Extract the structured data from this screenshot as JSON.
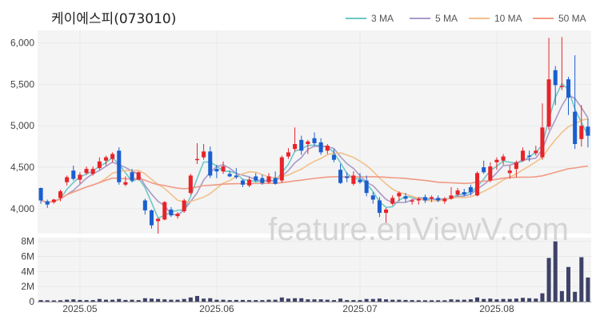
{
  "title": "케이에스피(073010)",
  "watermark": "feature.enViewV.com",
  "legend": [
    {
      "label": "3 MA",
      "color": "#6cc8c8"
    },
    {
      "label": "5 MA",
      "color": "#a99ac8"
    },
    {
      "label": "10 MA",
      "color": "#f2c08a"
    },
    {
      "label": "50 MA",
      "color": "#f09a84"
    }
  ],
  "colors": {
    "up": "#e8232a",
    "down": "#1b5fcf",
    "volume": "#3e4268",
    "grid": "#e9e9e9",
    "panel": "#f4f4f4"
  },
  "chart_data": {
    "type": "candlestick",
    "x_ticks": [
      "2025.05",
      "2025.06",
      "2025.07",
      "2025.08"
    ],
    "x_tick_index": [
      6,
      27,
      49,
      70
    ],
    "price_axis": {
      "ticks": [
        "4,000",
        "4,500",
        "5,000",
        "5,500",
        "6,000"
      ],
      "tick_values": [
        4000,
        4500,
        5000,
        5500,
        6000
      ],
      "range": [
        3700,
        6150
      ]
    },
    "volume_axis": {
      "ticks": [
        "0",
        "2M",
        "4M",
        "6M",
        "8M"
      ],
      "tick_values": [
        0,
        2,
        4,
        6,
        8
      ],
      "unit": "M",
      "range": [
        0,
        8.5
      ]
    },
    "candles": [
      [
        4250,
        4255,
        4060,
        4100,
        0.2
      ],
      [
        4090,
        4110,
        4010,
        4050,
        0.18
      ],
      [
        4080,
        4120,
        4060,
        4110,
        0.16
      ],
      [
        4130,
        4230,
        4090,
        4210,
        0.18
      ],
      [
        4320,
        4400,
        4280,
        4380,
        0.25
      ],
      [
        4460,
        4520,
        4340,
        4360,
        0.3
      ],
      [
        4350,
        4440,
        4300,
        4410,
        0.22
      ],
      [
        4430,
        4510,
        4410,
        4480,
        0.2
      ],
      [
        4420,
        4510,
        4400,
        4480,
        0.2
      ],
      [
        4490,
        4620,
        4470,
        4570,
        0.35
      ],
      [
        4580,
        4640,
        4520,
        4620,
        0.25
      ],
      [
        4600,
        4680,
        4560,
        4660,
        0.25
      ],
      [
        4700,
        4740,
        4290,
        4320,
        0.35
      ],
      [
        4290,
        4390,
        4270,
        4320,
        0.22
      ],
      [
        4440,
        4480,
        4320,
        4340,
        0.25
      ],
      [
        4350,
        4450,
        4340,
        4440,
        0.2
      ],
      [
        4100,
        4120,
        3930,
        3980,
        0.45
      ],
      [
        3980,
        3990,
        3760,
        3800,
        0.4
      ],
      [
        3850,
        3880,
        3700,
        3880,
        0.35
      ],
      [
        3870,
        4090,
        3860,
        4080,
        0.3
      ],
      [
        3990,
        4020,
        3900,
        3920,
        0.25
      ],
      [
        3910,
        3960,
        3880,
        3940,
        0.25
      ],
      [
        3970,
        4120,
        3950,
        4100,
        0.35
      ],
      [
        4190,
        4420,
        4170,
        4400,
        0.55
      ],
      [
        4590,
        4790,
        4540,
        4600,
        0.75
      ],
      [
        4620,
        4780,
        4590,
        4690,
        0.4
      ],
      [
        4690,
        4750,
        4370,
        4400,
        0.45
      ],
      [
        4480,
        4530,
        4370,
        4450,
        0.25
      ],
      [
        4450,
        4570,
        4420,
        4510,
        0.25
      ],
      [
        4420,
        4460,
        4380,
        4390,
        0.2
      ],
      [
        4400,
        4490,
        4360,
        4380,
        0.22
      ],
      [
        4340,
        4360,
        4260,
        4290,
        0.22
      ],
      [
        4280,
        4380,
        4260,
        4350,
        0.2
      ],
      [
        4390,
        4430,
        4320,
        4340,
        0.2
      ],
      [
        4370,
        4410,
        4290,
        4310,
        0.2
      ],
      [
        4320,
        4430,
        4300,
        4390,
        0.25
      ],
      [
        4370,
        4450,
        4290,
        4300,
        0.25
      ],
      [
        4340,
        4640,
        4310,
        4620,
        0.55
      ],
      [
        4630,
        4730,
        4600,
        4680,
        0.4
      ],
      [
        4720,
        4980,
        4690,
        4780,
        0.45
      ],
      [
        4830,
        4880,
        4650,
        4700,
        0.45
      ],
      [
        4780,
        4830,
        4660,
        4810,
        0.3
      ],
      [
        4850,
        4920,
        4760,
        4790,
        0.3
      ],
      [
        4800,
        4850,
        4650,
        4680,
        0.3
      ],
      [
        4700,
        4780,
        4660,
        4760,
        0.25
      ],
      [
        4650,
        4720,
        4560,
        4590,
        0.2
      ],
      [
        4470,
        4540,
        4300,
        4310,
        0.4
      ],
      [
        4390,
        4440,
        4320,
        4370,
        0.2
      ],
      [
        4300,
        4450,
        4280,
        4400,
        0.2
      ],
      [
        4350,
        4430,
        4300,
        4320,
        0.2
      ],
      [
        4340,
        4400,
        4150,
        4190,
        0.35
      ],
      [
        4160,
        4200,
        4060,
        4110,
        0.35
      ],
      [
        4100,
        4140,
        3900,
        3950,
        0.4
      ],
      [
        3950,
        4010,
        3830,
        3990,
        0.3
      ],
      [
        4060,
        4160,
        4040,
        4130,
        0.25
      ],
      [
        4150,
        4210,
        4090,
        4190,
        0.25
      ],
      [
        4150,
        4190,
        4080,
        4120,
        0.22
      ],
      [
        4090,
        4120,
        4050,
        4100,
        0.2
      ],
      [
        4100,
        4140,
        4050,
        4120,
        0.18
      ],
      [
        4140,
        4170,
        4070,
        4100,
        0.18
      ],
      [
        4120,
        4160,
        4080,
        4140,
        0.18
      ],
      [
        4130,
        4160,
        4080,
        4100,
        0.18
      ],
      [
        4090,
        4140,
        4060,
        4120,
        0.18
      ],
      [
        4120,
        4260,
        4110,
        4160,
        0.3
      ],
      [
        4170,
        4250,
        4150,
        4220,
        0.25
      ],
      [
        4200,
        4240,
        4150,
        4170,
        0.25
      ],
      [
        4260,
        4290,
        4160,
        4200,
        0.3
      ],
      [
        4160,
        4450,
        4150,
        4430,
        0.55
      ],
      [
        4500,
        4580,
        4420,
        4440,
        0.35
      ],
      [
        4340,
        4560,
        4320,
        4510,
        0.4
      ],
      [
        4560,
        4620,
        4470,
        4590,
        0.3
      ],
      [
        4580,
        4660,
        4530,
        4630,
        0.35
      ],
      [
        4430,
        4520,
        4360,
        4460,
        0.35
      ],
      [
        4480,
        4580,
        4380,
        4560,
        0.4
      ],
      [
        4580,
        4740,
        4570,
        4700,
        0.5
      ],
      [
        4640,
        4700,
        4570,
        4630,
        0.45
      ],
      [
        4670,
        4760,
        4640,
        4700,
        0.4
      ],
      [
        4620,
        5270,
        4590,
        4980,
        1.1
      ],
      [
        4990,
        6060,
        4950,
        5560,
        5.8
      ],
      [
        5670,
        5720,
        5250,
        5490,
        8.0
      ],
      [
        5470,
        6070,
        5430,
        5480,
        1.4
      ],
      [
        5560,
        5590,
        5130,
        5340,
        4.6
      ],
      [
        5170,
        5850,
        4720,
        4780,
        1.3
      ],
      [
        4840,
        5250,
        4750,
        5000,
        5.9
      ],
      [
        4990,
        5090,
        4740,
        4880,
        3.2
      ]
    ]
  }
}
